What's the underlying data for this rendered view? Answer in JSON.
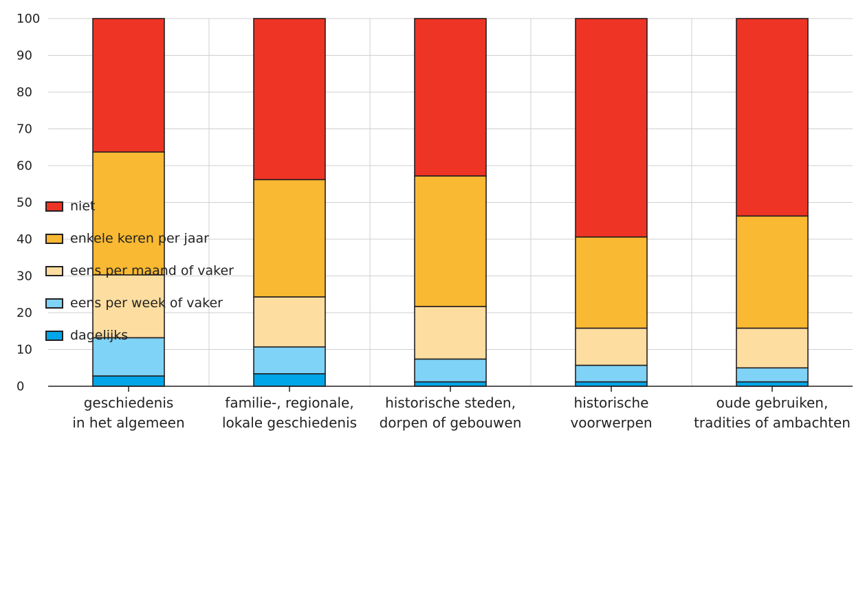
{
  "chart_data": {
    "type": "bar",
    "stacked": true,
    "categories": [
      [
        "geschiedenis",
        "in het algemeen"
      ],
      [
        "familie-, regionale,",
        "lokale geschiedenis"
      ],
      [
        "historische steden,",
        "dorpen of gebouwen"
      ],
      [
        "historische",
        "voorwerpen"
      ],
      [
        "oude gebruiken,",
        "tradities of ambachten"
      ]
    ],
    "ylim": [
      0,
      100
    ],
    "yticks": [
      0,
      10,
      20,
      30,
      40,
      50,
      60,
      70,
      80,
      90,
      100
    ],
    "grid": true,
    "legend_position": "bottom-left",
    "series": [
      {
        "name": "dagelijks",
        "color": "#00a6e8",
        "values": [
          2.8,
          3.4,
          1.2,
          1.2,
          1.2
        ]
      },
      {
        "name": "eens per week of vaker",
        "color": "#7fd3f6",
        "values": [
          10.4,
          7.3,
          6.2,
          4.5,
          3.8
        ]
      },
      {
        "name": "eens per maand of vaker",
        "color": "#fddda0",
        "values": [
          17.1,
          13.6,
          14.3,
          10.1,
          10.8
        ]
      },
      {
        "name": "enkele keren per jaar",
        "color": "#f9b932",
        "values": [
          33.4,
          31.9,
          35.5,
          24.8,
          30.5
        ]
      },
      {
        "name": "niet",
        "color": "#ee3424",
        "values": [
          36.3,
          43.8,
          42.8,
          59.4,
          53.7
        ]
      }
    ],
    "legend_order": [
      "niet",
      "enkele keren per jaar",
      "eens per maand of vaker",
      "eens per week of vaker",
      "dagelijks"
    ]
  }
}
